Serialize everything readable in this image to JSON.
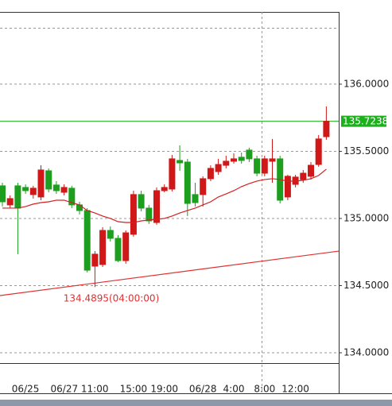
{
  "chart_data": {
    "type": "candlestick",
    "categories": [
      null,
      null,
      null,
      "06/25",
      null,
      null,
      null,
      null,
      null,
      null,
      "06/27 11:00",
      null,
      null,
      null,
      null,
      null,
      null,
      "15:00",
      null,
      null,
      null,
      "19:00",
      null,
      null,
      null,
      null,
      "06/28",
      null,
      null,
      null,
      "4:00",
      null,
      null,
      null,
      "8:00",
      null,
      null,
      null,
      "12:00",
      null,
      null,
      null,
      null
    ],
    "open": [
      135.243,
      135.101,
      135.243,
      135.231,
      135.178,
      135.16,
      135.355,
      135.249,
      135.195,
      135.225,
      135.101,
      135.059,
      134.645,
      134.657,
      134.911,
      134.852,
      134.686,
      134.882,
      135.178,
      135.077,
      134.97,
      135.207,
      135.219,
      135.432,
      135.42,
      135.178,
      135.178,
      135.296,
      135.349,
      135.396,
      135.426,
      135.456,
      135.509,
      135.444,
      135.337,
      135.426,
      135.444,
      135.16,
      135.254,
      135.29,
      135.314,
      135.402,
      135.609
    ],
    "high": [
      135.266,
      135.172,
      135.266,
      135.254,
      135.243,
      135.396,
      135.373,
      135.278,
      135.254,
      135.243,
      135.124,
      135.077,
      134.757,
      134.935,
      134.941,
      134.876,
      134.911,
      135.207,
      135.207,
      135.101,
      135.231,
      135.254,
      135.473,
      135.544,
      135.444,
      135.266,
      135.314,
      135.396,
      135.444,
      135.467,
      135.485,
      135.491,
      135.527,
      135.467,
      135.467,
      135.592,
      135.467,
      135.325,
      135.325,
      135.361,
      135.42,
      135.621,
      135.834
    ],
    "low": [
      135.089,
      135.077,
      134.734,
      135.183,
      135.148,
      135.136,
      135.195,
      135.183,
      135.172,
      135.077,
      135.03,
      134.598,
      134.4895,
      134.639,
      134.828,
      134.675,
      134.663,
      134.864,
      135.053,
      134.959,
      134.953,
      135.195,
      135.201,
      135.355,
      135.018,
      135.089,
      135.089,
      135.278,
      135.325,
      135.373,
      135.408,
      135.408,
      135.42,
      135.314,
      135.314,
      135.266,
      135.112,
      135.136,
      135.231,
      135.266,
      135.29,
      135.385,
      135.586
    ],
    "close": [
      135.124,
      135.148,
      135.077,
      135.207,
      135.225,
      135.361,
      135.219,
      135.207,
      135.231,
      135.101,
      135.059,
      134.615,
      134.734,
      134.911,
      134.852,
      134.686,
      134.893,
      135.178,
      135.077,
      134.982,
      135.207,
      135.231,
      135.444,
      135.414,
      135.112,
      135.118,
      135.296,
      135.373,
      135.402,
      135.426,
      135.444,
      135.432,
      135.444,
      135.337,
      135.444,
      135.444,
      135.136,
      135.314,
      135.308,
      135.337,
      135.396,
      135.592,
      135.7238
    ],
    "up_color": "#d01818",
    "down_color": "#1e9e1e",
    "moving_average": {
      "color": "#d42020",
      "values": [
        135.077,
        135.077,
        135.077,
        135.089,
        135.107,
        135.118,
        135.124,
        135.136,
        135.136,
        135.118,
        135.101,
        135.059,
        135.041,
        135.018,
        135.0,
        134.976,
        134.97,
        134.97,
        134.982,
        134.988,
        134.994,
        135.0,
        135.018,
        135.041,
        135.059,
        135.077,
        135.101,
        135.124,
        135.16,
        135.183,
        135.207,
        135.237,
        135.26,
        135.278,
        135.29,
        135.296,
        135.29,
        135.278,
        135.278,
        135.284,
        135.296,
        135.32,
        135.367
      ]
    },
    "trendline": {
      "color": "#e03030",
      "values": [
        134.426,
        134.757
      ]
    },
    "current_price": {
      "value": 135.7238,
      "color": "#1db01d"
    },
    "annotation": "134.4895(04:00:00)",
    "ylim": [
      133.923,
      136.538
    ],
    "yticks": [
      {
        "value": 134,
        "label": "134.0000"
      },
      {
        "value": 134.5,
        "label": "134.5000"
      },
      {
        "value": 135,
        "label": "135.0000"
      },
      {
        "value": 135.5,
        "label": "135.5000"
      },
      {
        "value": 136,
        "label": "136.0000"
      }
    ],
    "grid": true
  }
}
